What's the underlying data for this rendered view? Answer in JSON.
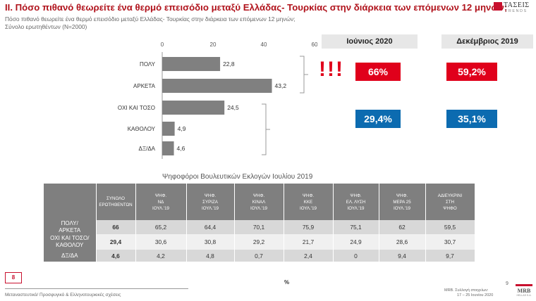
{
  "header": {
    "title": "ΙΙ. Πόσο πιθανό θεωρείτε ένα θερμό επεισόδιο μεταξύ Ελλάδας- Τουρκίας στην διάρκεια των επόμενων 12 μηνών;",
    "subtitle": "Πόσο πιθανό θεωρείτε ένα θερμό επεισόδιο μεταξύ Ελλάδας- Τουρκίας στην διάρκεια των επόμενων 12 μηνών;",
    "base": "Σύνολο ερωτηθέντων (Ν=2000)",
    "logo_name": "ΤΑΣΕΙΣ",
    "logo_sub": "TRENDS"
  },
  "chart_data": {
    "type": "bar",
    "orientation": "horizontal",
    "categories": [
      "ΠΟΛΥ",
      "ΑΡΚΕΤΑ",
      "ΟΧΙ ΚΑΙ ΤΟΣΟ",
      "ΚΑΘΟΛΟΥ",
      "ΔΞ/ΔΑ"
    ],
    "values": [
      22.8,
      43.2,
      24.5,
      4.9,
      4.6
    ],
    "value_labels": [
      "22,8",
      "43,2",
      "24,5",
      "4,9",
      "4,6"
    ],
    "xlim": [
      0,
      60
    ],
    "ticks": [
      "0",
      "20",
      "40",
      "60"
    ],
    "tick_values": [
      0,
      20,
      40,
      60
    ],
    "bar_color": "#808080",
    "grid": false
  },
  "comparison": {
    "june_header": "Ιούνιος 2020",
    "december_header": "Δεκέμβριος 2019",
    "exclamation": "!!!",
    "june_likely": "66%",
    "december_likely": "59,2%",
    "june_unlikely": "29,4%",
    "december_unlikely": "35,1%",
    "colors": {
      "likely": "#e0001b",
      "unlikely": "#0c6bb0"
    }
  },
  "voters_table": {
    "title": "Ψηφοφόροι Βουλευτικών Εκλογών Ιουλίου 2019",
    "columns": [
      [
        "ΣΥΝΟΛΟ",
        "ΕΡΩΤΗΘΕΝΤΩΝ"
      ],
      [
        "ΨΗΦ.",
        "ΝΔ",
        "ΙΟΥΛ.'19"
      ],
      [
        "ΨΗΦ.",
        "ΣΥΡΙΖΑ",
        "ΙΟΥΛ.'19"
      ],
      [
        "ΨΗΦ.",
        "ΚΙΝΑΛ",
        "ΙΟΥΛ.'19"
      ],
      [
        "ΨΗΦ.",
        "ΚΚΕ",
        "ΙΟΥΛ.'19"
      ],
      [
        "ΨΗΦ.",
        "ΕΛ. ΛΥΣΗ",
        "ΙΟΥΛ.'19"
      ],
      [
        "ΨΗΦ.",
        "ΜΕΡΑ 25",
        "ΙΟΥΛ.'19"
      ],
      [
        "ΑΔΙΕΥΚΡΙΝΙ",
        "ΣΤΗ",
        "ΨΗΦΟ"
      ]
    ],
    "rows": [
      {
        "label": [
          "ΠΟΛΥ/",
          "ΑΡΚΕΤΑ"
        ],
        "values": [
          "66",
          "65,2",
          "64,4",
          "70,1",
          "75,9",
          "75,1",
          "62",
          "59,5"
        ]
      },
      {
        "label": [
          "ΟΧΙ ΚΑΙ ΤΟΣΟ/",
          "ΚΑΘΟΛΟΥ"
        ],
        "values": [
          "29,4",
          "30,6",
          "30,8",
          "29,2",
          "21,7",
          "24,9",
          "28,6",
          "30,7"
        ]
      },
      {
        "label": [
          "ΔΞ/ΔΑ"
        ],
        "values": [
          "4,6",
          "4,2",
          "4,8",
          "0,7",
          "2,4",
          "0",
          "9,4",
          "9,7"
        ]
      }
    ],
    "unit": "%"
  },
  "footer": {
    "page_box": "8",
    "left": "Μεταναστευτικό/ Προσφυγικό & Ελληνοτουρκικές σχέσεις",
    "right_line1": "MRB. Συλλογή στοιχείων:",
    "right_line2": "17 – 25 Ιουνίου 2020",
    "slide_number": "9",
    "mrb_logo": "MRB",
    "mrb_sub": "HELLAS S.A."
  }
}
